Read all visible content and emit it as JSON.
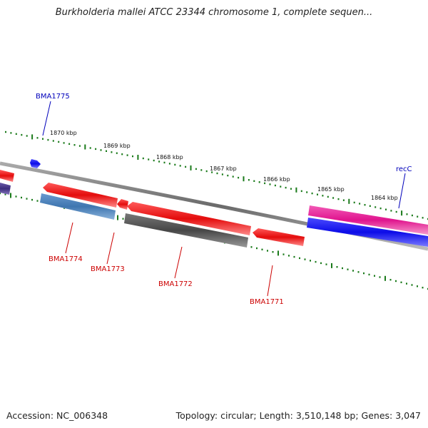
{
  "title": "Burkholderia mallei ATCC 23344 chromosome 1, complete sequen...",
  "footer": {
    "accession": "Accession: NC_006348",
    "summary": "Topology: circular; Length: 3,510,148 bp; Genes: 3,047"
  },
  "colors": {
    "backbone": "#7f7f7f",
    "ticks": "#1a7a1a",
    "gene_red": "#ee1111",
    "gene_blue": "#1515ee",
    "gene_steelblue": "#4a80b8",
    "gene_gray": "#555555",
    "gene_magenta": "#e8189a",
    "gene_purple": "#4a3a8a",
    "label_red": "#cc0000",
    "label_blue": "#0000bb"
  },
  "scale": {
    "ticks": [
      {
        "label": "1870 kbp"
      },
      {
        "label": "1869 kbp"
      },
      {
        "label": "1868 kbp"
      },
      {
        "label": "1867 kbp"
      },
      {
        "label": "1866 kbp"
      },
      {
        "label": "1865 kbp"
      },
      {
        "label": "1864 kbp"
      }
    ]
  },
  "genes": [
    {
      "name": "BMA1775",
      "color": "gene_blue"
    },
    {
      "name": "BMA1774",
      "color": "gene_steelblue"
    },
    {
      "name": "BMA1773",
      "color": "gene_red"
    },
    {
      "name": "BMA1772",
      "color": "gene_gray"
    },
    {
      "name": "BMA1771",
      "color": "gene_red"
    },
    {
      "name": "recC",
      "color": "gene_blue"
    }
  ]
}
